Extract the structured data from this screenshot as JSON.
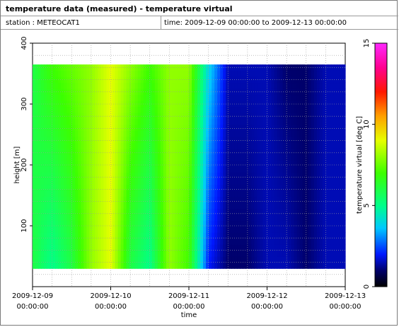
{
  "header": {
    "title": "temperature data (measured) - temperature virtual",
    "station": "station : METEOCAT1",
    "time_range": "time: 2009-12-09 00:00:00 to 2009-12-13 00:00:00"
  },
  "chart_data": {
    "type": "heatmap",
    "xlabel": "time",
    "ylabel": "height [m]",
    "colorbar_label": "temperature virtual [deg C]",
    "xlim": [
      0,
      4
    ],
    "ylim": [
      0,
      400
    ],
    "x_ticks": [
      {
        "value": 0,
        "date": "2009-12-09",
        "time": "00:00:00"
      },
      {
        "value": 1,
        "date": "2009-12-10",
        "time": "00:00:00"
      },
      {
        "value": 2,
        "date": "2009-12-11",
        "time": "00:00:00"
      },
      {
        "value": 3,
        "date": "2009-12-12",
        "time": "00:00:00"
      },
      {
        "value": 4,
        "date": "2009-12-13",
        "time": "00:00:00"
      }
    ],
    "y_ticks": [
      "100",
      "200",
      "300",
      "400"
    ],
    "colorbar_ticks": [
      "0",
      "5",
      "10",
      "15"
    ],
    "color_range": [
      0,
      15
    ],
    "data_height_range": [
      30,
      365
    ],
    "grid": true,
    "profile_times": [
      0,
      0.25,
      0.5,
      0.75,
      1,
      1.25,
      1.5,
      1.75,
      2,
      2.25,
      2.5,
      2.75,
      3,
      3.25,
      3.5,
      3.75,
      4
    ],
    "surface_temperature": [
      6,
      5,
      6,
      8,
      9,
      6,
      5,
      8,
      7,
      2,
      1,
      1,
      1.5,
      1.5,
      1,
      1.5,
      1.5
    ],
    "top_temperature": [
      6,
      7,
      7.5,
      8,
      9,
      8,
      7,
      8,
      8,
      4,
      1.5,
      1.5,
      1.5,
      1,
      1,
      1.5,
      1.5
    ]
  }
}
